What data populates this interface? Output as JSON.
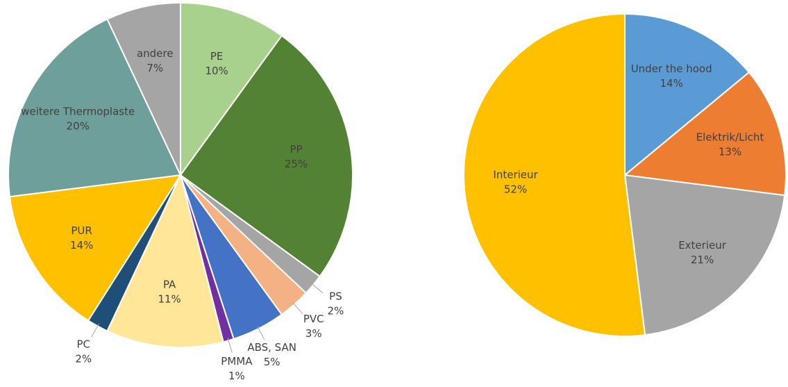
{
  "chart_data": [
    {
      "type": "pie",
      "categories": [
        "PE",
        "PP",
        "PS",
        "PVC",
        "ABS, SAN",
        "PMMA",
        "PA",
        "PC",
        "PUR",
        "weitere Thermoplaste",
        "andere"
      ],
      "values": [
        10,
        25,
        2,
        3,
        5,
        1,
        11,
        2,
        14,
        20,
        7
      ],
      "value_labels": [
        "10%",
        "25%",
        "2%",
        "3%",
        "5%",
        "1%",
        "11%",
        "2%",
        "14%",
        "20%",
        "7%"
      ],
      "colors": [
        "#a9d18e",
        "#548235",
        "#a5a5a5",
        "#f4b183",
        "#4472c4",
        "#7030a0",
        "#ffe699",
        "#1f4e79",
        "#ffc000",
        "#6f9f9a",
        "#a5a5a5"
      ]
    },
    {
      "type": "pie",
      "categories": [
        "Under the hood",
        "Elektrik/Licht",
        "Exterieur",
        "Interieur"
      ],
      "values": [
        14,
        13,
        21,
        52
      ],
      "value_labels": [
        "14%",
        "13%",
        "21%",
        "52%"
      ],
      "colors": [
        "#5b9bd5",
        "#ed7d31",
        "#a5a5a5",
        "#ffc000"
      ]
    }
  ]
}
